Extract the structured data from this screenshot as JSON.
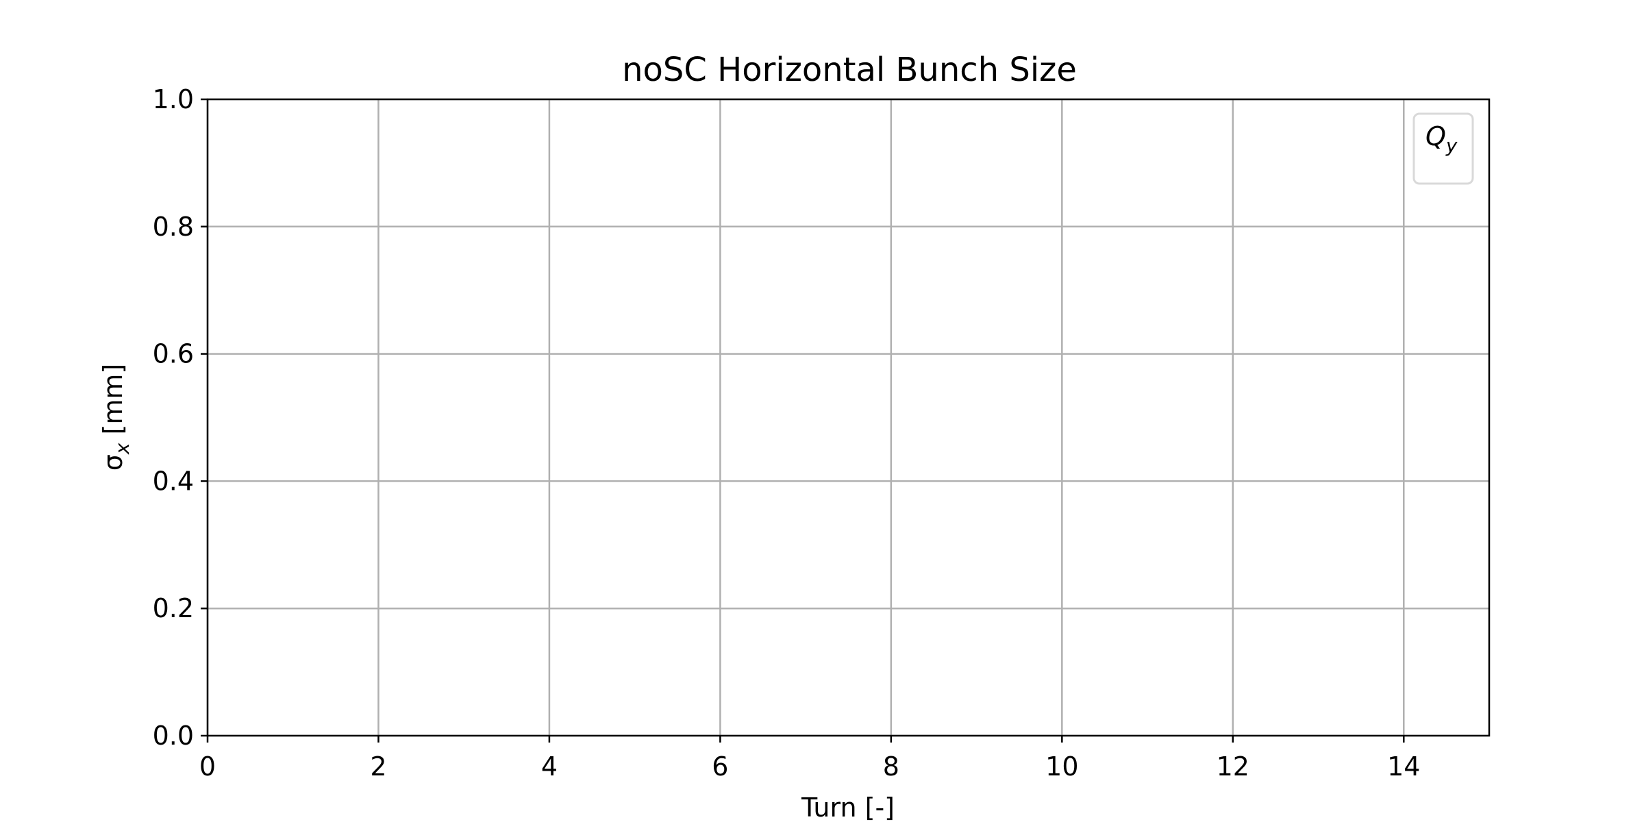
{
  "chart_data": {
    "type": "line",
    "title": "noSC Horizontal Bunch Size",
    "xlabel": "Turn [-]",
    "ylabel": "σx [mm]",
    "ylabel_parts": {
      "symbol": "σ",
      "subscript": "x",
      "unit": " [mm]"
    },
    "xlim": [
      0,
      15
    ],
    "ylim": [
      0,
      1
    ],
    "x_ticks": [
      0,
      2,
      4,
      6,
      8,
      10,
      12,
      14
    ],
    "y_ticks": [
      0.0,
      0.2,
      0.4,
      0.6,
      0.8,
      1.0
    ],
    "x_tick_labels": [
      "0",
      "2",
      "4",
      "6",
      "8",
      "10",
      "12",
      "14"
    ],
    "y_tick_labels": [
      "0.0",
      "0.2",
      "0.4",
      "0.6",
      "0.8",
      "1.0"
    ],
    "grid": true,
    "series": [],
    "legend": {
      "placement": "top-right",
      "entries": [
        {
          "label": "Qy",
          "symbol": "Q",
          "subscript": "y"
        }
      ]
    },
    "colors": {
      "grid": "#b0b0b0",
      "axes": "#000000",
      "legend_border": "#d9d9d9"
    }
  }
}
